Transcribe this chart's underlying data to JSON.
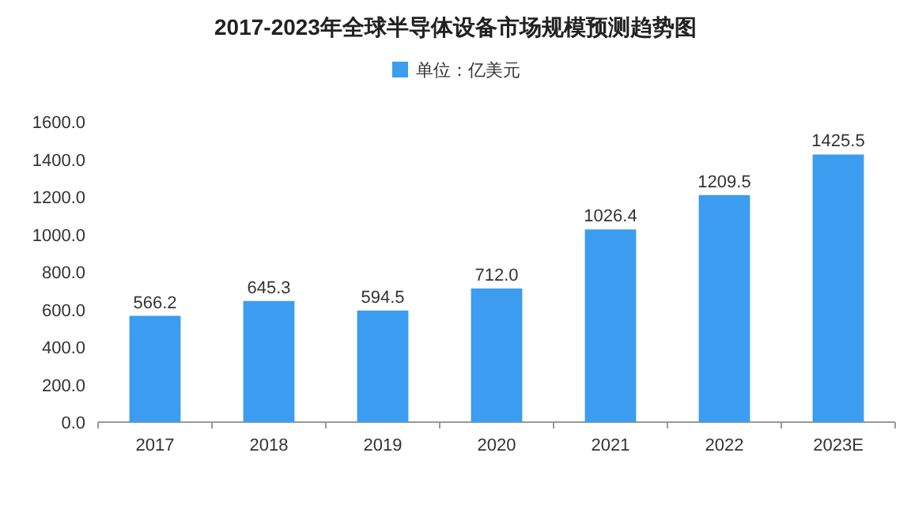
{
  "chart_data": {
    "type": "bar",
    "title": "2017-2023年全球半导体设备市场规模预测趋势图",
    "categories": [
      "2017",
      "2018",
      "2019",
      "2020",
      "2021",
      "2022",
      "2023E"
    ],
    "series": [
      {
        "name": "单位：亿美元",
        "color": "#3c9cf0",
        "values": [
          566.2,
          645.3,
          594.5,
          712.0,
          1026.4,
          1209.5,
          1425.5
        ],
        "value_labels": [
          "566.2",
          "645.3",
          "594.5",
          "712.0",
          "1026.4",
          "1209.5",
          "1425.5"
        ]
      }
    ],
    "ylim": [
      0,
      1600
    ],
    "yticks": [
      {
        "value": 0,
        "label": "0.0"
      },
      {
        "value": 200,
        "label": "200.0"
      },
      {
        "value": 400,
        "label": "400.0"
      },
      {
        "value": 600,
        "label": "600.0"
      },
      {
        "value": 800,
        "label": "800.0"
      },
      {
        "value": 1000,
        "label": "1000.0"
      },
      {
        "value": 1200,
        "label": "1200.0"
      },
      {
        "value": 1400,
        "label": "1400.0"
      },
      {
        "value": 1600,
        "label": "1600.0"
      }
    ],
    "legend": "top",
    "grid": false
  }
}
